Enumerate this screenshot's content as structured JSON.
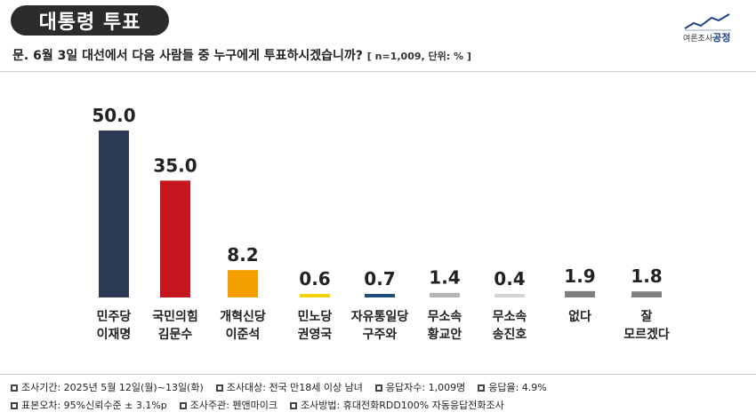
{
  "header": {
    "title": "대통령 투표",
    "logo_small": "여론조사",
    "logo_brand": "공정"
  },
  "question": {
    "text": "문. 6월 3일 대선에서 다음 사람들 중 누구에게 투표하시겠습니까?",
    "meta": "[ n=1,009, 단위: % ]"
  },
  "chart_data": {
    "type": "bar",
    "categories": [
      [
        "민주당",
        "이재명"
      ],
      [
        "국민의힘",
        "김문수"
      ],
      [
        "개혁신당",
        "이준석"
      ],
      [
        "민노당",
        "권영국"
      ],
      [
        "자유통일당",
        "구주와"
      ],
      [
        "무소속",
        "황교안"
      ],
      [
        "무소속",
        "송진호"
      ],
      [
        "없다",
        ""
      ],
      [
        "잘",
        "모르겠다"
      ]
    ],
    "values": [
      50.0,
      35.0,
      8.2,
      0.6,
      0.7,
      1.4,
      0.4,
      1.9,
      1.8
    ],
    "value_labels": [
      "50.0",
      "35.0",
      "8.2",
      "0.6",
      "0.7",
      "1.4",
      "0.4",
      "1.9",
      "1.8"
    ],
    "colors": [
      "#2c3a55",
      "#c4161c",
      "#f5a000",
      "#f5d000",
      "#1f4e79",
      "#b5b5b5",
      "#d3d3d3",
      "#7f7f7f",
      "#7f7f7f"
    ],
    "ylim": [
      0,
      50
    ],
    "grid": false
  },
  "footer": {
    "row1": [
      "조사기간: 2025년 5월 12일(월)~13일(화)",
      "조사대상: 전국 만18세 이상 남녀",
      "응답자수: 1,009명",
      "응답율: 4.9%"
    ],
    "row2": [
      "표본오차: 95%신뢰수준 ± 3.1%p",
      "조사주관: 펜앤마이크",
      "조사방법: 휴대전화RDD100% 자동응답전화조사"
    ]
  }
}
